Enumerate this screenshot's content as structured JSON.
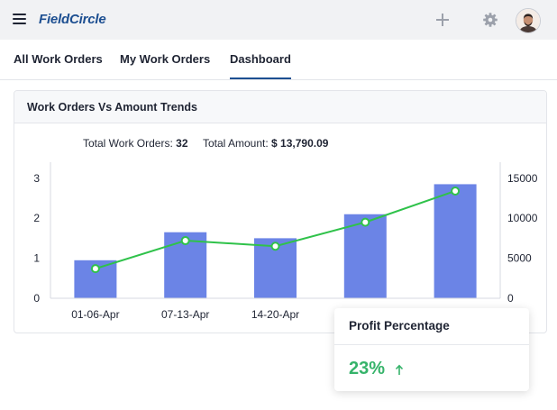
{
  "app": {
    "logo": "FieldCircle"
  },
  "tabs": [
    {
      "label": "All Work Orders"
    },
    {
      "label": "My Work Orders"
    },
    {
      "label": "Dashboard",
      "active": true
    }
  ],
  "card": {
    "title": "Work Orders Vs Amount Trends",
    "totals": {
      "orders_label": "Total Work Orders:",
      "orders_value": "32",
      "amount_label": "Total Amount:",
      "amount_value": "$ 13,790.09"
    }
  },
  "profit": {
    "title": "Profit Percentage",
    "value": "23%",
    "trend": "up"
  },
  "colors": {
    "bar": "#6b84e6",
    "line": "#2fc24a",
    "accent": "#1d4f91",
    "profit": "#36b36a"
  },
  "chart_data": {
    "type": "bar",
    "categories": [
      "01-06-Apr",
      "07-13-Apr",
      "14-20-Apr",
      "",
      ""
    ],
    "series": [
      {
        "type": "bar",
        "axis": "left",
        "values": [
          0.95,
          1.65,
          1.5,
          2.1,
          2.85
        ]
      },
      {
        "type": "line",
        "axis": "right",
        "values": [
          3700,
          7200,
          6500,
          9500,
          13400
        ]
      }
    ],
    "y_left": {
      "ticks": [
        "0",
        "1",
        "2",
        "3"
      ],
      "range": [
        0,
        3.4
      ]
    },
    "y_right": {
      "ticks": [
        "0",
        "5000",
        "10000",
        "15000"
      ],
      "range": [
        0,
        17000
      ]
    },
    "grid": false
  }
}
